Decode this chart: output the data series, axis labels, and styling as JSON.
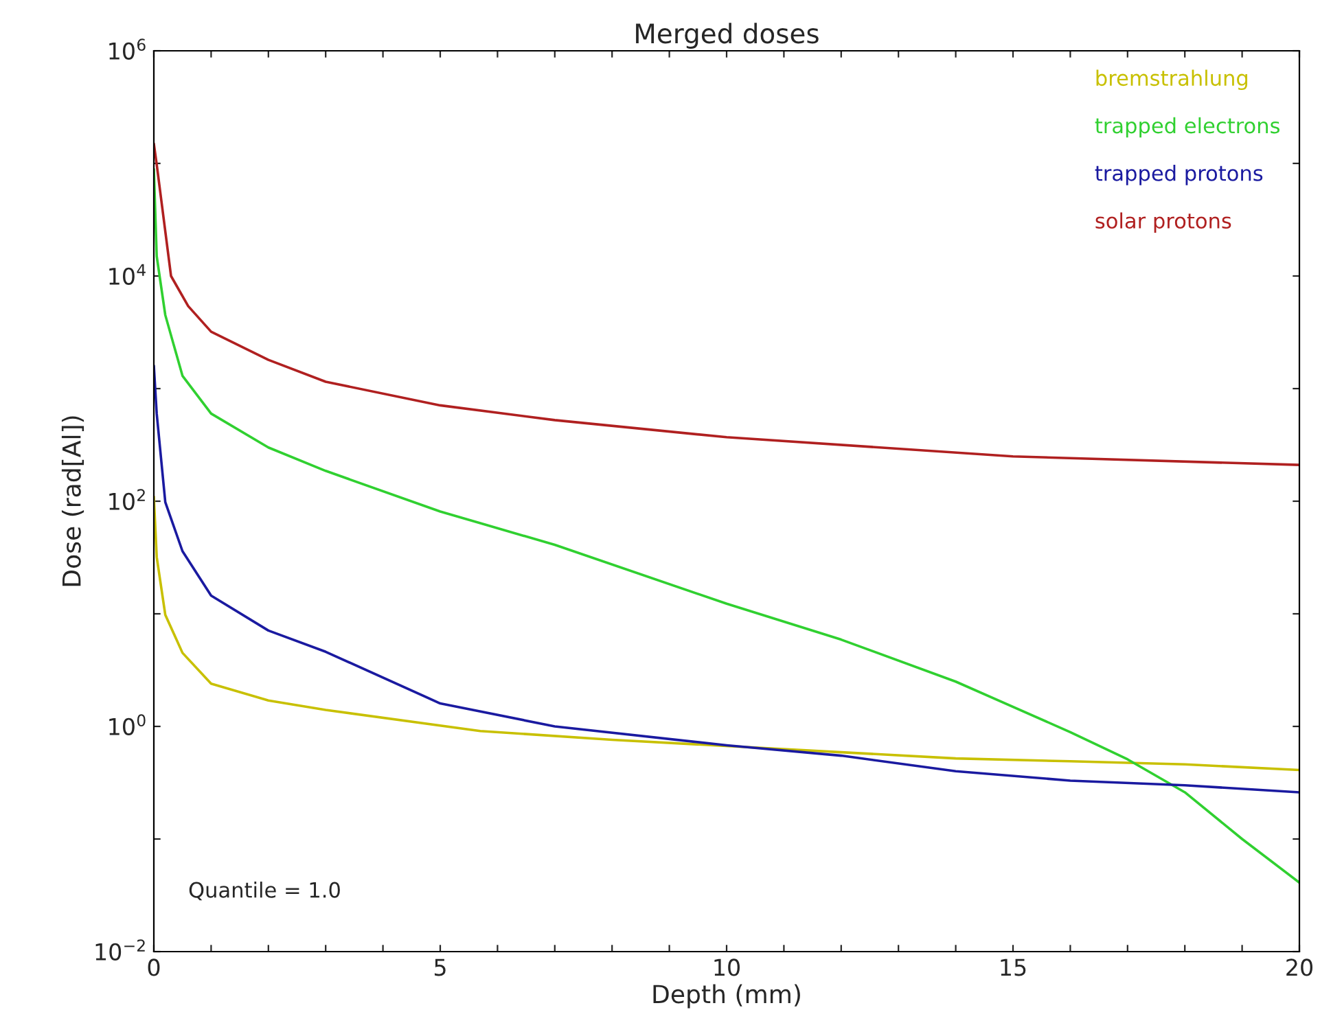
{
  "chart_data": {
    "type": "line",
    "title": "Merged doses",
    "xlabel": "Depth (mm)",
    "ylabel": "Dose (rad[Al])",
    "log": "y",
    "grid": false,
    "legend": "top right",
    "marker": "none",
    "line_style": "solid",
    "xlim": [
      0,
      20
    ],
    "ylim": [
      0.01,
      1000000
    ],
    "xticks": [
      0,
      {
        "value": 1,
        "label": null
      },
      {
        "value": 2,
        "label": null
      },
      {
        "value": 3,
        "label": null
      },
      {
        "value": 4,
        "label": null
      },
      5,
      {
        "value": 6,
        "label": null
      },
      {
        "value": 7,
        "label": null
      },
      {
        "value": 8,
        "label": null
      },
      {
        "value": 9,
        "label": null
      },
      10,
      {
        "value": 11,
        "label": null
      },
      {
        "value": 12,
        "label": null
      },
      {
        "value": 13,
        "label": null
      },
      {
        "value": 14,
        "label": null
      },
      15,
      {
        "value": 16,
        "label": null
      },
      {
        "value": 17,
        "label": null
      },
      {
        "value": 18,
        "label": null
      },
      {
        "value": 19,
        "label": null
      },
      20
    ],
    "yticks": [
      {
        "value": 0.01,
        "label": "10$^{−2}$"
      },
      {
        "value": 0.1,
        "label": null
      },
      {
        "value": 1,
        "label": "10$^{0}$"
      },
      {
        "value": 10,
        "label": null
      },
      {
        "value": 100,
        "label": "10$^{2}$"
      },
      {
        "value": 1000,
        "label": null
      },
      {
        "value": 10000,
        "label": "10$^{4}$"
      },
      {
        "value": 100000,
        "label": null
      },
      {
        "value": 1000000,
        "label": "10$^{6}$"
      }
    ],
    "series": [
      {
        "name": "bremstrahlung",
        "color": "#c8c000",
        "x": [
          0,
          0.05,
          0.2,
          0.5,
          1,
          2,
          3,
          5.7,
          8,
          12,
          14,
          16,
          18,
          20
        ],
        "values": [
          110,
          32,
          9.8,
          4.5,
          2.4,
          1.7,
          1.4,
          0.91,
          0.76,
          0.59,
          0.52,
          0.49,
          0.46,
          0.41
        ]
      },
      {
        "name": "trapped electrons",
        "color": "#30d030",
        "x": [
          0,
          0.05,
          0.2,
          0.5,
          1,
          2,
          3,
          5,
          7,
          10,
          12,
          14,
          16,
          17,
          18,
          19,
          20
        ],
        "values": [
          89000,
          15000,
          4500,
          1300,
          600,
          300,
          186,
          81,
          41,
          12.3,
          5.9,
          2.5,
          0.89,
          0.51,
          0.26,
          0.1,
          0.041
        ]
      },
      {
        "name": "trapped protons",
        "color": "#1a1aa0",
        "x": [
          0,
          0.05,
          0.2,
          0.5,
          1,
          2,
          3,
          5,
          7,
          10,
          12,
          14,
          16,
          18,
          20
        ],
        "values": [
          1600,
          600,
          98,
          36,
          14.5,
          7.1,
          4.6,
          1.6,
          1.0,
          0.68,
          0.55,
          0.4,
          0.33,
          0.3,
          0.26
        ]
      },
      {
        "name": "solar protons",
        "color": "#b02020",
        "x": [
          0,
          0.05,
          0.3,
          0.6,
          1,
          2,
          3,
          5,
          7,
          10,
          15,
          20
        ],
        "values": [
          150000,
          98000,
          10000,
          5400,
          3200,
          1800,
          1150,
          710,
          525,
          370,
          250,
          210
        ]
      }
    ],
    "annotations": [
      "Quantile = 1.0"
    ]
  }
}
